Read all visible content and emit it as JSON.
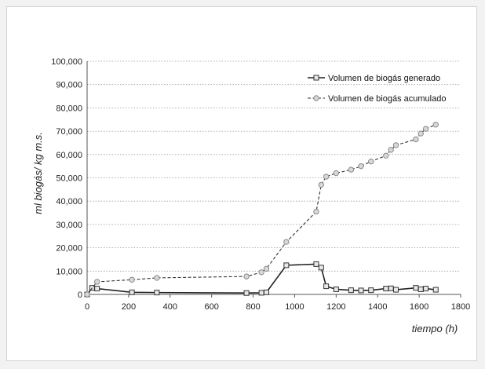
{
  "chart_data": {
    "type": "line",
    "title": "",
    "xlabel": "tiempo (h)",
    "ylabel": "ml biogás/ kg m.s.",
    "xlim": [
      0,
      1800
    ],
    "ylim": [
      0,
      100000
    ],
    "x_ticks": [
      "0",
      "200",
      "400",
      "600",
      "800",
      "1000",
      "1200",
      "1400",
      "1600",
      "1800"
    ],
    "y_ticks": [
      "0",
      "10,000",
      "20,000",
      "30,000",
      "40,000",
      "50,000",
      "60,000",
      "70,000",
      "80,000",
      "90,000",
      "100,000"
    ],
    "grid": "horizontal dotted",
    "legend_position": "top-right",
    "series": [
      {
        "name": "Volumen de biogás generado",
        "style": "solid",
        "marker": "square",
        "color": "#222222",
        "x": [
          0,
          24,
          48,
          216,
          336,
          768,
          840,
          864,
          960,
          1104,
          1128,
          1152,
          1200,
          1272,
          1320,
          1368,
          1440,
          1464,
          1488,
          1584,
          1608,
          1632,
          1680
        ],
        "y": [
          0,
          2800,
          2500,
          900,
          800,
          600,
          700,
          900,
          12500,
          13000,
          11500,
          3500,
          2200,
          1800,
          1700,
          1800,
          2500,
          2600,
          2000,
          2800,
          2200,
          2500,
          2000
        ]
      },
      {
        "name": "Volumen de biogás acumulado",
        "style": "dashed",
        "marker": "circle",
        "color": "#333333",
        "x": [
          0,
          48,
          216,
          336,
          768,
          840,
          864,
          960,
          1104,
          1128,
          1152,
          1200,
          1272,
          1320,
          1368,
          1440,
          1464,
          1488,
          1584,
          1608,
          1632,
          1680
        ],
        "y": [
          0,
          5400,
          6300,
          7100,
          7700,
          9500,
          11000,
          22500,
          35500,
          47000,
          50500,
          52000,
          53500,
          55000,
          57000,
          59500,
          62000,
          64000,
          66500,
          69000,
          71000,
          72800
        ]
      }
    ]
  }
}
